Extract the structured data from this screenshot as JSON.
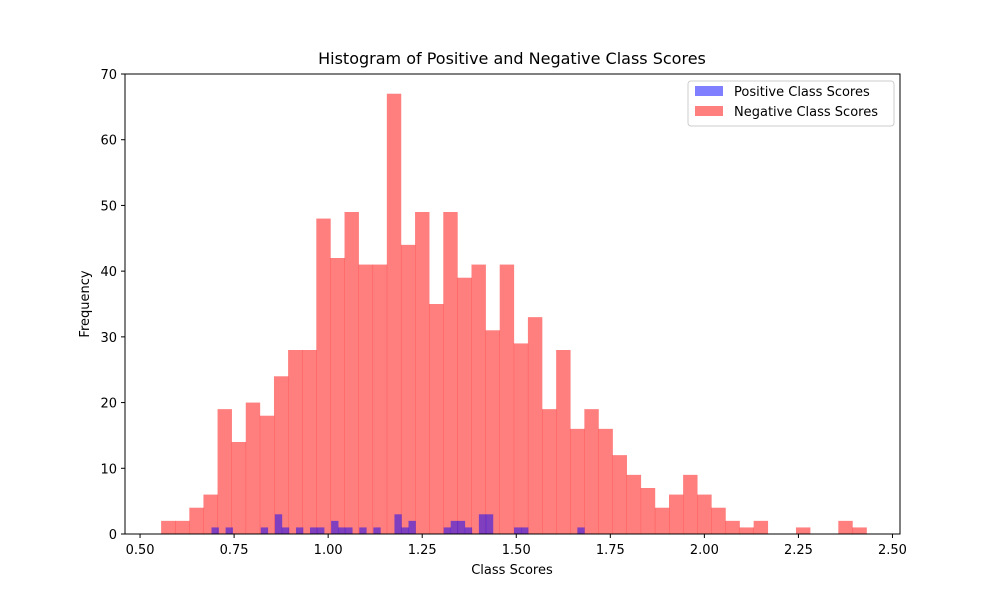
{
  "chart_data": {
    "type": "bar",
    "title": "Histogram of Positive and Negative Class Scores",
    "xlabel": "Class Scores",
    "ylabel": "Frequency",
    "xlim": [
      0.46,
      2.52
    ],
    "ylim": [
      0,
      70
    ],
    "xticks": [
      0.5,
      0.75,
      1.0,
      1.25,
      1.5,
      1.75,
      2.0,
      2.25,
      2.5
    ],
    "xtick_labels": [
      "0.50",
      "0.75",
      "1.00",
      "1.25",
      "1.50",
      "1.75",
      "2.00",
      "2.25",
      "2.50"
    ],
    "yticks": [
      0,
      10,
      20,
      30,
      40,
      50,
      60,
      70
    ],
    "ytick_labels": [
      "0",
      "10",
      "20",
      "30",
      "40",
      "50",
      "60",
      "70"
    ],
    "grid": false,
    "legend_position": "top-right",
    "series": [
      {
        "name": "Positive Class Scores",
        "color": "#0000ff",
        "opacity": 0.5,
        "bin_start": 0.69,
        "bin_width": 0.0187,
        "counts": [
          1,
          0,
          1,
          0,
          0,
          0,
          0,
          1,
          0,
          3,
          1,
          0,
          1,
          0,
          1,
          1,
          0,
          2,
          1,
          1,
          0,
          1,
          0,
          1,
          0,
          0,
          3,
          1,
          2,
          0,
          0,
          0,
          0,
          1,
          2,
          2,
          1,
          0,
          3,
          3,
          0,
          0,
          0,
          1,
          1,
          0,
          0,
          0,
          0,
          0,
          0,
          0,
          1
        ]
      },
      {
        "name": "Negative Class Scores",
        "color": "#ff0000",
        "opacity": 0.5,
        "bin_start": 0.556,
        "bin_width": 0.0375,
        "counts": [
          2,
          2,
          4,
          6,
          19,
          14,
          20,
          18,
          24,
          28,
          28,
          48,
          42,
          49,
          41,
          41,
          67,
          44,
          49,
          35,
          49,
          39,
          41,
          31,
          41,
          29,
          33,
          19,
          28,
          16,
          19,
          16,
          12,
          9,
          7,
          4,
          6,
          9,
          6,
          4,
          2,
          1,
          2,
          0,
          0,
          1,
          0,
          0,
          2,
          1
        ]
      }
    ]
  }
}
